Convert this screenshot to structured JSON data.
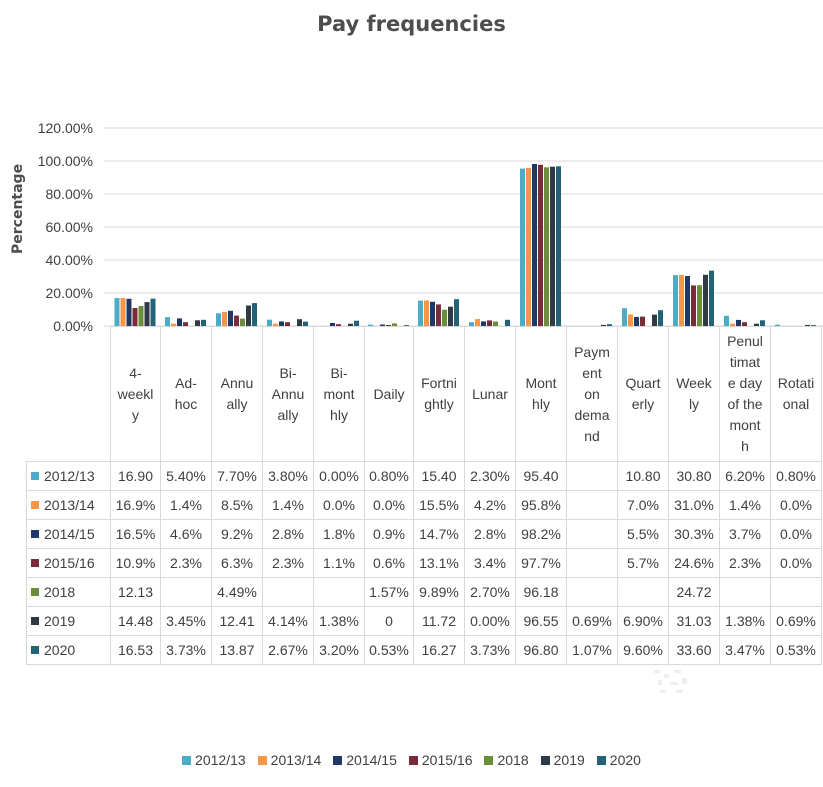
{
  "chart_data": {
    "type": "bar",
    "title": "Pay frequencies",
    "xlabel": "",
    "ylabel": "Percentage",
    "ylim": [
      0,
      120
    ],
    "yticks": [
      "0.00%",
      "20.00%",
      "40.00%",
      "60.00%",
      "80.00%",
      "100.00%",
      "120.00%"
    ],
    "ytick_values": [
      0,
      20,
      40,
      60,
      80,
      100,
      120
    ],
    "grid": true,
    "legend_position": "bottom",
    "categories": [
      "4-weekly",
      "Ad-hoc",
      "Annually",
      "Bi-Annually",
      "Bi-monthly",
      "Daily",
      "Fortnightly",
      "Lunar",
      "Monthly",
      "Payment on demand",
      "Quarterly",
      "Weekly",
      "Penultimate day of the month",
      "Rotational"
    ],
    "category_labels": [
      "4-\nweekl\ny",
      "Ad-\nhoc",
      "Annu\nally",
      "Bi-\nAnnu\nally",
      "Bi-\nmont\nhly",
      "Daily",
      "Fortni\nghtly",
      "Lunar",
      "Mont\nhly",
      "Paym\nent\non\ndema\nnd",
      "Quart\nerly",
      "Week\nly",
      "Penul\ntimat\ne day\nof the\nmont\nh",
      "Rotati\nonal"
    ],
    "series": [
      {
        "name": "2012/13",
        "color": "#4bacc6",
        "values": [
          16.9,
          5.4,
          7.7,
          3.8,
          0.0,
          0.8,
          15.4,
          2.3,
          95.4,
          null,
          10.8,
          30.8,
          6.2,
          0.8
        ],
        "labels": [
          "16.90",
          "5.40%",
          "7.70%",
          "3.80%",
          "0.00%",
          "0.80%",
          "15.40",
          "2.30%",
          "95.40",
          "",
          "10.80",
          "30.80",
          "6.20%",
          "0.80%"
        ]
      },
      {
        "name": "2013/14",
        "color": "#f79646",
        "values": [
          16.9,
          1.4,
          8.5,
          1.4,
          0.0,
          0.0,
          15.5,
          4.2,
          95.8,
          null,
          7.0,
          31.0,
          1.4,
          0.0
        ],
        "labels": [
          "16.9%",
          "1.4%",
          "8.5%",
          "1.4%",
          "0.0%",
          "0.0%",
          "15.5%",
          "4.2%",
          "95.8%",
          "",
          "7.0%",
          "31.0%",
          "1.4%",
          "0.0%"
        ]
      },
      {
        "name": "2014/15",
        "color": "#1f3864",
        "values": [
          16.5,
          4.6,
          9.2,
          2.8,
          1.8,
          0.9,
          14.7,
          2.8,
          98.2,
          null,
          5.5,
          30.3,
          3.7,
          0.0
        ],
        "labels": [
          "16.5%",
          "4.6%",
          "9.2%",
          "2.8%",
          "1.8%",
          "0.9%",
          "14.7%",
          "2.8%",
          "98.2%",
          "",
          "5.5%",
          "30.3%",
          "3.7%",
          "0.0%"
        ]
      },
      {
        "name": "2015/16",
        "color": "#7b2c3b",
        "values": [
          10.9,
          2.3,
          6.3,
          2.3,
          1.1,
          0.6,
          13.1,
          3.4,
          97.7,
          null,
          5.7,
          24.6,
          2.3,
          0.0
        ],
        "labels": [
          "10.9%",
          "2.3%",
          "6.3%",
          "2.3%",
          "1.1%",
          "0.6%",
          "13.1%",
          "3.4%",
          "97.7%",
          "",
          "5.7%",
          "24.6%",
          "2.3%",
          "0.0%"
        ]
      },
      {
        "name": "2018",
        "color": "#6b8e3a",
        "values": [
          12.13,
          null,
          4.49,
          null,
          null,
          1.57,
          9.89,
          2.7,
          96.18,
          null,
          null,
          24.72,
          null,
          null
        ],
        "labels": [
          "12.13",
          "",
          "4.49%",
          "",
          "",
          "1.57%",
          "9.89%",
          "2.70%",
          "96.18",
          "",
          "",
          "24.72",
          "",
          ""
        ]
      },
      {
        "name": "2019",
        "color": "#303a45",
        "values": [
          14.48,
          3.45,
          12.41,
          4.14,
          1.38,
          0,
          11.72,
          0.0,
          96.55,
          0.69,
          6.9,
          31.03,
          1.38,
          0.69
        ],
        "labels": [
          "14.48",
          "3.45%",
          "12.41",
          "4.14%",
          "1.38%",
          "0",
          "11.72",
          "0.00%",
          "96.55",
          "0.69%",
          "6.90%",
          "31.03",
          "1.38%",
          "0.69%"
        ]
      },
      {
        "name": "2020",
        "color": "#226378",
        "values": [
          16.53,
          3.73,
          13.87,
          2.67,
          3.2,
          0.53,
          16.27,
          3.73,
          96.8,
          1.07,
          9.6,
          33.6,
          3.47,
          0.53
        ],
        "labels": [
          "16.53",
          "3.73%",
          "13.87",
          "2.67%",
          "3.20%",
          "0.53%",
          "16.27",
          "3.73%",
          "96.80",
          "1.07%",
          "9.60%",
          "33.60",
          "3.47%",
          "0.53%"
        ]
      }
    ]
  }
}
